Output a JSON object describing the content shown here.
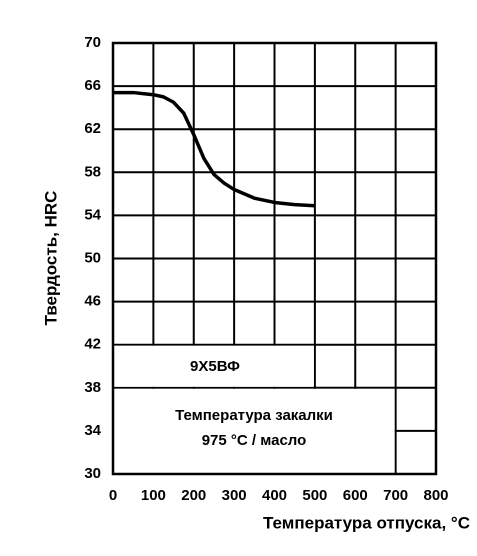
{
  "chart_data": {
    "type": "line",
    "x_label": "Температура отпуска, °C",
    "y_label": "Твердость, HRC",
    "annotations": [
      "9Х5ВФ",
      "Температура закалки",
      "975 °C / масло"
    ],
    "x": [
      0,
      50,
      100,
      125,
      150,
      175,
      200,
      225,
      250,
      275,
      300,
      350,
      400,
      450,
      500
    ],
    "series": [
      {
        "color": "#000000",
        "values": [
          65.4,
          65.4,
          65.2,
          65.0,
          64.5,
          63.5,
          61.5,
          59.3,
          57.8,
          57.0,
          56.4,
          55.6,
          55.2,
          55.0,
          54.9
        ]
      }
    ],
    "xlim": [
      0,
      800
    ],
    "xticks": [
      0,
      100,
      200,
      300,
      400,
      500,
      600,
      700,
      800
    ],
    "ylim": [
      30,
      70
    ],
    "yticks": [
      30,
      34,
      38,
      42,
      46,
      50,
      54,
      58,
      62,
      66,
      70
    ],
    "grid": true
  }
}
